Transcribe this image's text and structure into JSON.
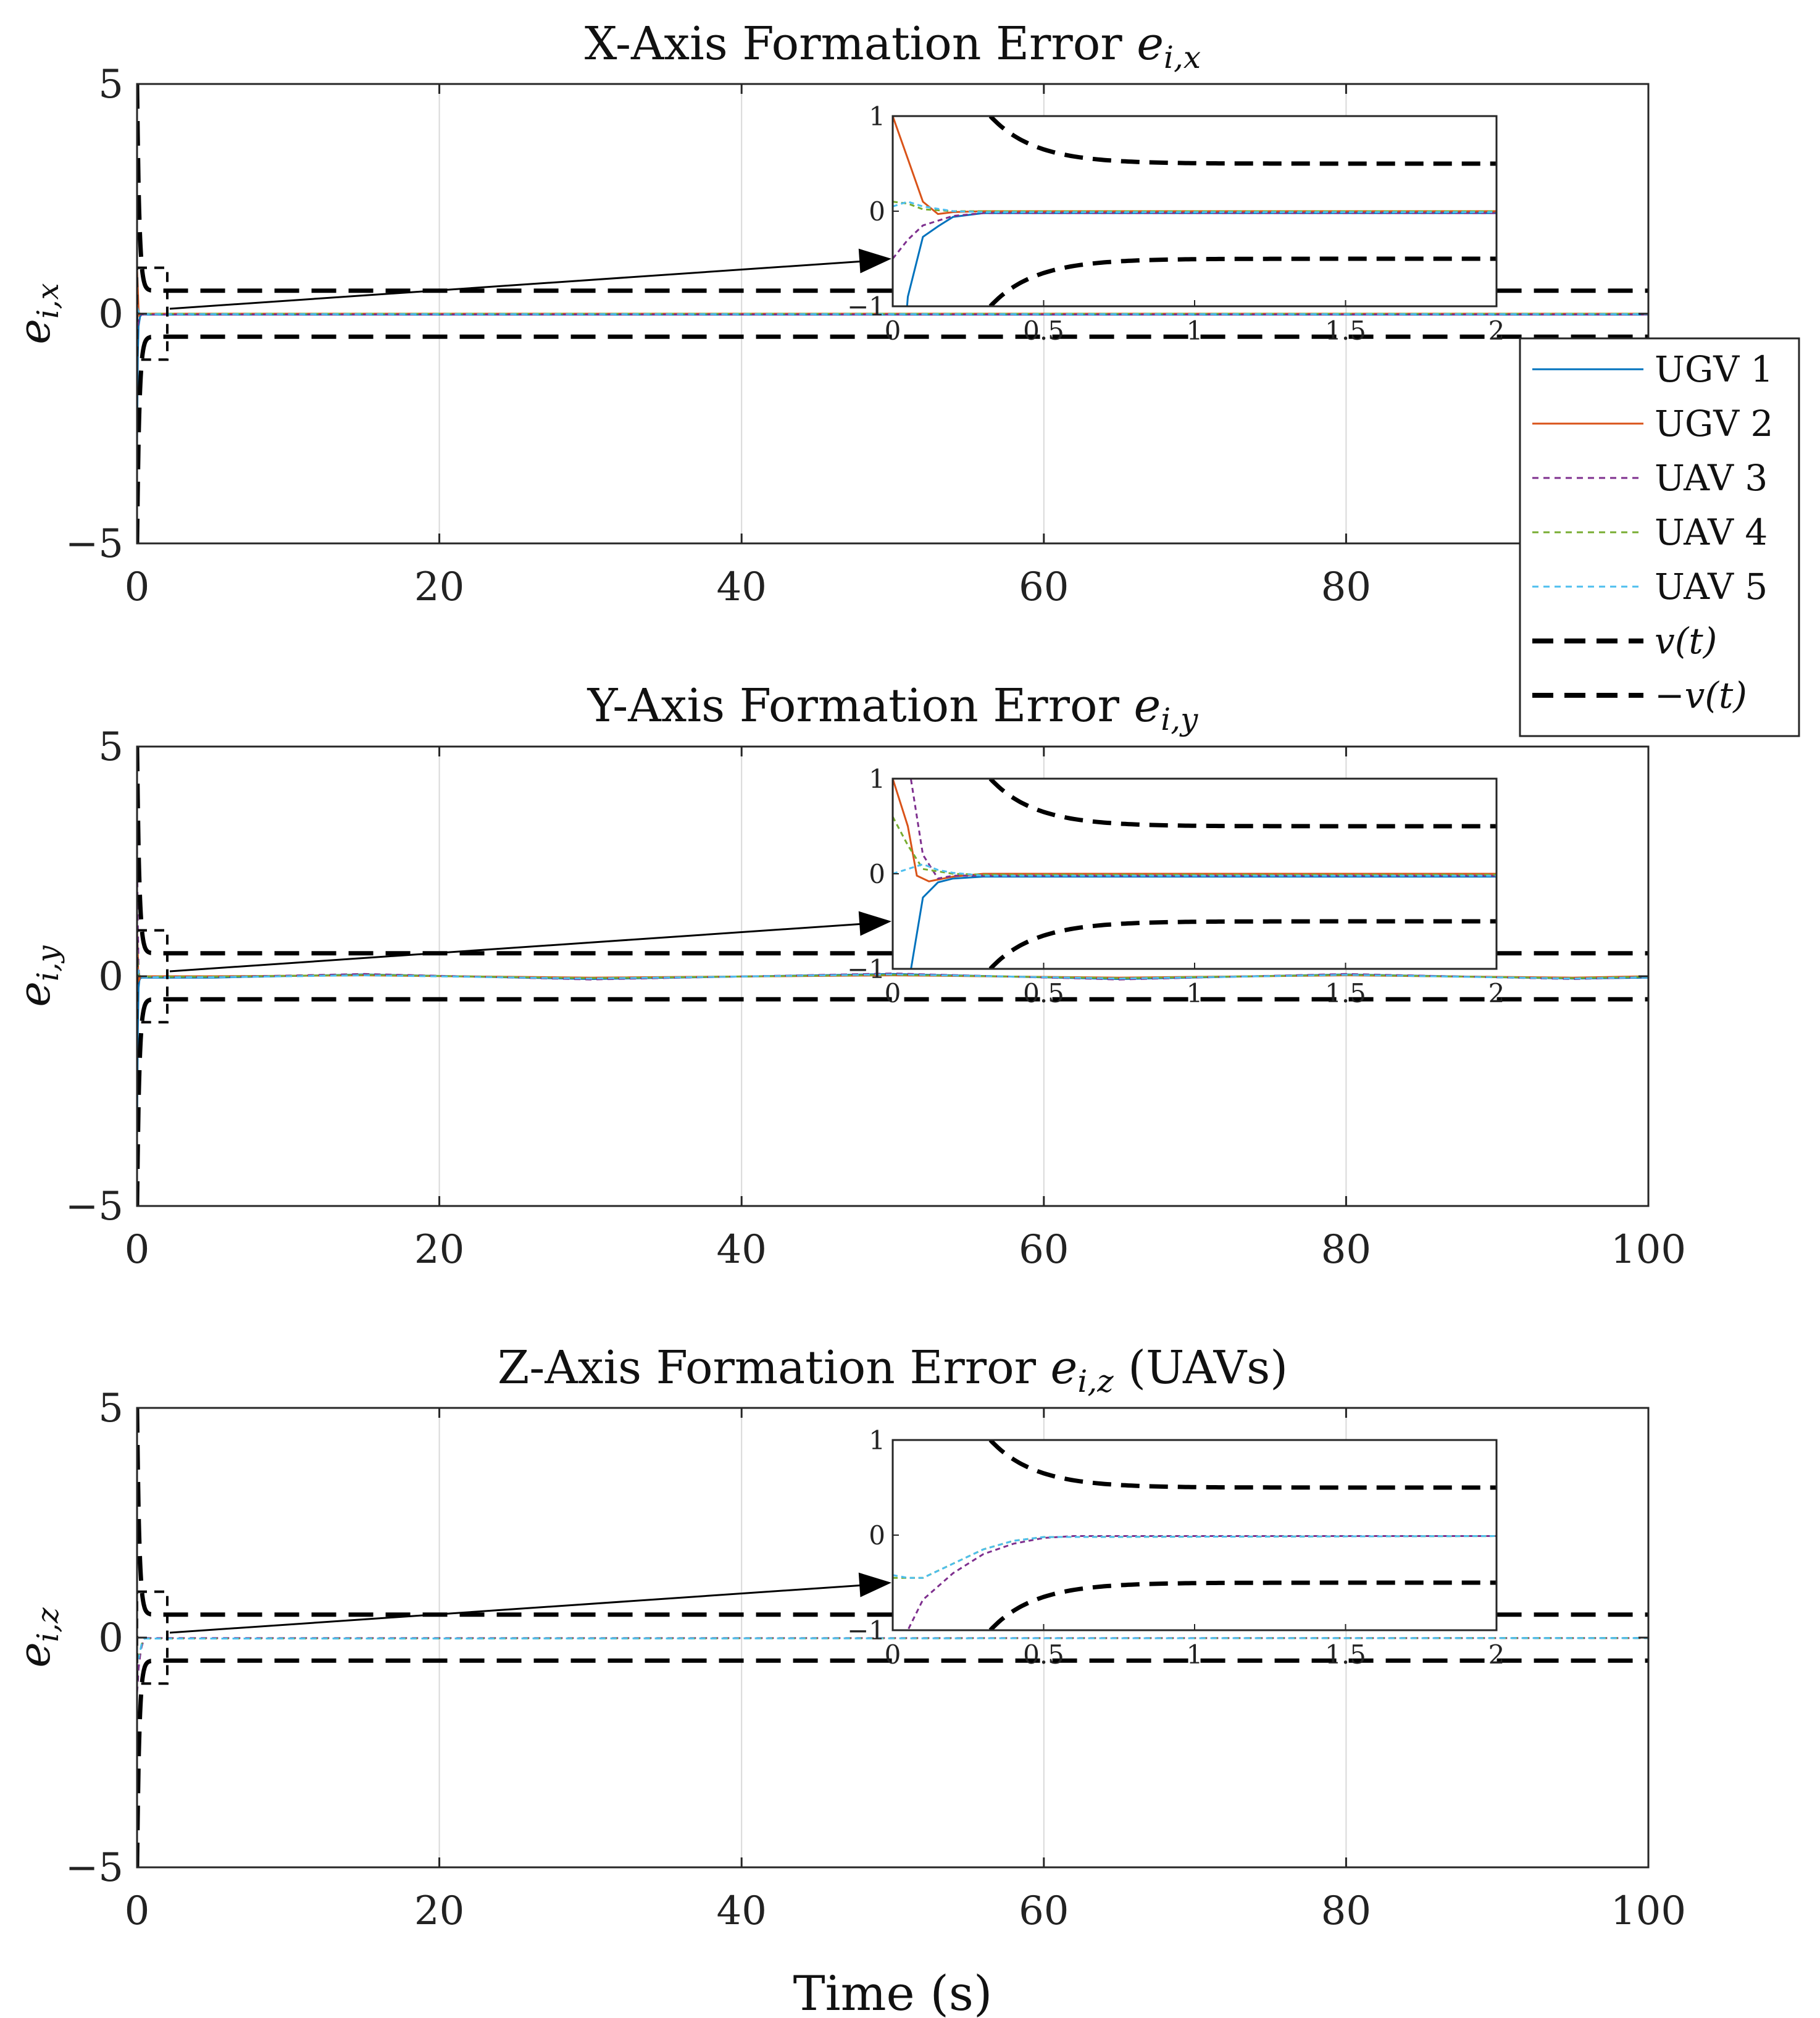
{
  "figure": {
    "xlabel": "Time (s)"
  },
  "legend": {
    "placement": "east, outside axes",
    "entries": [
      "UGV 1",
      "UGV 2",
      "UAV 3",
      "UAV 4",
      "UAV 5",
      "v(t)",
      "−v(t)"
    ]
  },
  "colors": {
    "ugv1": "#0072BD",
    "ugv2": "#D95319",
    "uav3": "#7E2F8E",
    "uav4": "#77AC30",
    "uav5": "#4DBEEE",
    "bound": "#000000",
    "grid": "#d9d9d9"
  },
  "chart_data": [
    {
      "type": "line",
      "title": "X-Axis Formation Error e_{i,x}",
      "title_parts": [
        "X-Axis Formation Error ",
        "e",
        "i,x",
        ""
      ],
      "ylabel": "e_{i,x}",
      "ylabel_parts": [
        "e",
        "i,x"
      ],
      "xlim": [
        0,
        100
      ],
      "ylim": [
        -5,
        5
      ],
      "xticks": [
        0,
        20,
        40,
        60,
        80,
        100
      ],
      "yticks": [
        -5,
        0,
        5
      ],
      "ytick_labels": [
        "−5",
        "0",
        "5"
      ],
      "grid": true,
      "bound": {
        "v_inf": 0.5,
        "v0": 5,
        "decay": 6.8,
        "note": "v(t) and −v(t) dashed black funnel; converges to ±0.5"
      },
      "series": [
        {
          "name": "UGV 1",
          "style": "solid",
          "x": [
            0,
            0.05,
            0.1,
            0.15,
            0.2,
            0.3,
            100
          ],
          "y": [
            -2.9,
            -0.9,
            -0.27,
            -0.16,
            -0.06,
            -0.02,
            -0.02
          ]
        },
        {
          "name": "UGV 2",
          "style": "solid",
          "x": [
            0,
            0.05,
            0.1,
            0.15,
            0.2,
            0.3,
            100
          ],
          "y": [
            1.0,
            0.55,
            0.1,
            -0.03,
            -0.01,
            0.0,
            0.0
          ]
        },
        {
          "name": "UAV 3",
          "style": "dashed",
          "x": [
            0,
            0.05,
            0.1,
            0.2,
            0.3,
            100
          ],
          "y": [
            -0.5,
            -0.3,
            -0.15,
            -0.05,
            -0.02,
            -0.02
          ]
        },
        {
          "name": "UAV 4",
          "style": "dashed",
          "x": [
            0,
            0.05,
            0.1,
            0.2,
            0.3,
            100
          ],
          "y": [
            0.1,
            0.08,
            0.02,
            0.0,
            0.0,
            0.0
          ]
        },
        {
          "name": "UAV 5",
          "style": "dashed",
          "x": [
            0,
            0.05,
            0.1,
            0.2,
            0.3,
            100
          ],
          "y": [
            0.05,
            0.1,
            0.05,
            0.0,
            -0.01,
            -0.01
          ]
        }
      ],
      "inset": {
        "xlim": [
          0,
          2
        ],
        "ylim": [
          -1,
          1
        ],
        "xticks": [
          0,
          0.5,
          1,
          1.5,
          2
        ],
        "xtick_labels": [
          "0",
          "0.5",
          "1",
          "1.5",
          "2"
        ],
        "yticks": [
          -1,
          0,
          1
        ],
        "ytick_labels": [
          "−1",
          "0",
          "1"
        ]
      }
    },
    {
      "type": "line",
      "title": "Y-Axis Formation Error e_{i,y}",
      "title_parts": [
        "Y-Axis Formation Error ",
        "e",
        "i,y",
        ""
      ],
      "ylabel": "e_{i,y}",
      "ylabel_parts": [
        "e",
        "i,y"
      ],
      "xlim": [
        0,
        100
      ],
      "ylim": [
        -5,
        5
      ],
      "xticks": [
        0,
        20,
        40,
        60,
        80,
        100
      ],
      "yticks": [
        -5,
        0,
        5
      ],
      "ytick_labels": [
        "−5",
        "0",
        "5"
      ],
      "grid": true,
      "bound": {
        "v_inf": 0.5,
        "v0": 5,
        "decay": 6.8,
        "note": "v(t) and −v(t) dashed black funnel; converges to ±0.5"
      },
      "series": [
        {
          "name": "UGV 1",
          "style": "solid",
          "x": [
            0,
            0.05,
            0.1,
            0.15,
            0.2,
            0.3,
            5,
            15,
            30,
            50,
            65,
            80,
            95,
            100
          ],
          "y": [
            -3.5,
            -1.2,
            -0.25,
            -0.09,
            -0.05,
            -0.03,
            -0.03,
            0.04,
            -0.06,
            0.05,
            -0.06,
            0.04,
            -0.05,
            -0.03
          ]
        },
        {
          "name": "UGV 2",
          "style": "solid",
          "x": [
            0,
            0.05,
            0.08,
            0.12,
            0.2,
            0.3,
            5,
            15,
            30,
            50,
            65,
            80,
            95,
            100
          ],
          "y": [
            1.0,
            0.5,
            -0.02,
            -0.08,
            -0.03,
            0.0,
            0.0,
            0.02,
            -0.03,
            0.02,
            -0.03,
            0.02,
            -0.03,
            0.0
          ]
        },
        {
          "name": "UAV 3",
          "style": "dashed",
          "x": [
            0,
            0.05,
            0.1,
            0.15,
            0.2,
            0.3,
            5,
            15,
            30,
            50,
            65,
            80,
            95,
            100
          ],
          "y": [
            2.8,
            1.2,
            0.2,
            -0.05,
            -0.02,
            -0.02,
            -0.02,
            0.05,
            -0.07,
            0.06,
            -0.07,
            0.05,
            -0.06,
            -0.02
          ]
        },
        {
          "name": "UAV 4",
          "style": "dashed",
          "x": [
            0,
            0.05,
            0.1,
            0.2,
            0.3,
            5,
            15,
            30,
            50,
            65,
            80,
            95,
            100
          ],
          "y": [
            0.6,
            0.3,
            0.05,
            0.0,
            -0.01,
            -0.01,
            0.03,
            -0.04,
            0.03,
            -0.04,
            0.03,
            -0.04,
            -0.01
          ]
        },
        {
          "name": "UAV 5",
          "style": "dashed",
          "x": [
            0,
            0.05,
            0.1,
            0.15,
            0.2,
            0.3,
            5,
            15,
            30,
            50,
            65,
            80,
            95,
            100
          ],
          "y": [
            0.0,
            0.05,
            0.1,
            0.04,
            0.01,
            -0.02,
            -0.02,
            0.02,
            -0.05,
            0.04,
            -0.05,
            0.03,
            -0.05,
            -0.02
          ]
        }
      ],
      "inset": {
        "xlim": [
          0,
          2
        ],
        "ylim": [
          -1,
          1
        ],
        "xticks": [
          0,
          0.5,
          1,
          1.5,
          2
        ],
        "xtick_labels": [
          "0",
          "0.5",
          "1",
          "1.5",
          "2"
        ],
        "yticks": [
          -1,
          0,
          1
        ],
        "ytick_labels": [
          "−1",
          "0",
          "1"
        ]
      }
    },
    {
      "type": "line",
      "title": "Z-Axis Formation Error e_{i,z} (UAVs)",
      "title_parts": [
        "Z-Axis Formation Error ",
        "e",
        "i,z",
        " (UAVs)"
      ],
      "ylabel": "e_{i,z}",
      "ylabel_parts": [
        "e",
        "i,z"
      ],
      "xlim": [
        0,
        100
      ],
      "ylim": [
        -5,
        5
      ],
      "xticks": [
        0,
        20,
        40,
        60,
        80,
        100
      ],
      "yticks": [
        -5,
        0,
        5
      ],
      "ytick_labels": [
        "−5",
        "0",
        "5"
      ],
      "grid": true,
      "bound": {
        "v_inf": 0.5,
        "v0": 5,
        "decay": 6.8,
        "note": "v(t) and −v(t) dashed black funnel; converges to ±0.5"
      },
      "series": [
        {
          "name": "UAV 3",
          "style": "dashed",
          "x": [
            0,
            0.05,
            0.1,
            0.2,
            0.3,
            0.4,
            0.5,
            0.6,
            100
          ],
          "y": [
            -1.2,
            -1.0,
            -0.68,
            -0.4,
            -0.2,
            -0.09,
            -0.03,
            -0.01,
            -0.01
          ]
        },
        {
          "name": "UAV 4",
          "style": "dashed",
          "x": [
            0,
            0.05,
            0.1,
            0.2,
            0.3,
            0.4,
            0.5,
            100
          ],
          "y": [
            -0.45,
            -0.45,
            -0.45,
            -0.3,
            -0.15,
            -0.06,
            -0.02,
            -0.01
          ]
        },
        {
          "name": "UAV 5",
          "style": "dashed",
          "x": [
            0,
            0.05,
            0.1,
            0.2,
            0.3,
            0.4,
            0.5,
            100
          ],
          "y": [
            -0.42,
            -0.45,
            -0.45,
            -0.3,
            -0.15,
            -0.06,
            -0.02,
            -0.01
          ]
        }
      ],
      "inset": {
        "xlim": [
          0,
          2
        ],
        "ylim": [
          -1,
          1
        ],
        "xticks": [
          0,
          0.5,
          1,
          1.5,
          2
        ],
        "xtick_labels": [
          "0",
          "0.5",
          "1",
          "1.5",
          "2"
        ],
        "yticks": [
          -1,
          0,
          1
        ],
        "ytick_labels": [
          "−1",
          "0",
          "1"
        ]
      }
    }
  ]
}
